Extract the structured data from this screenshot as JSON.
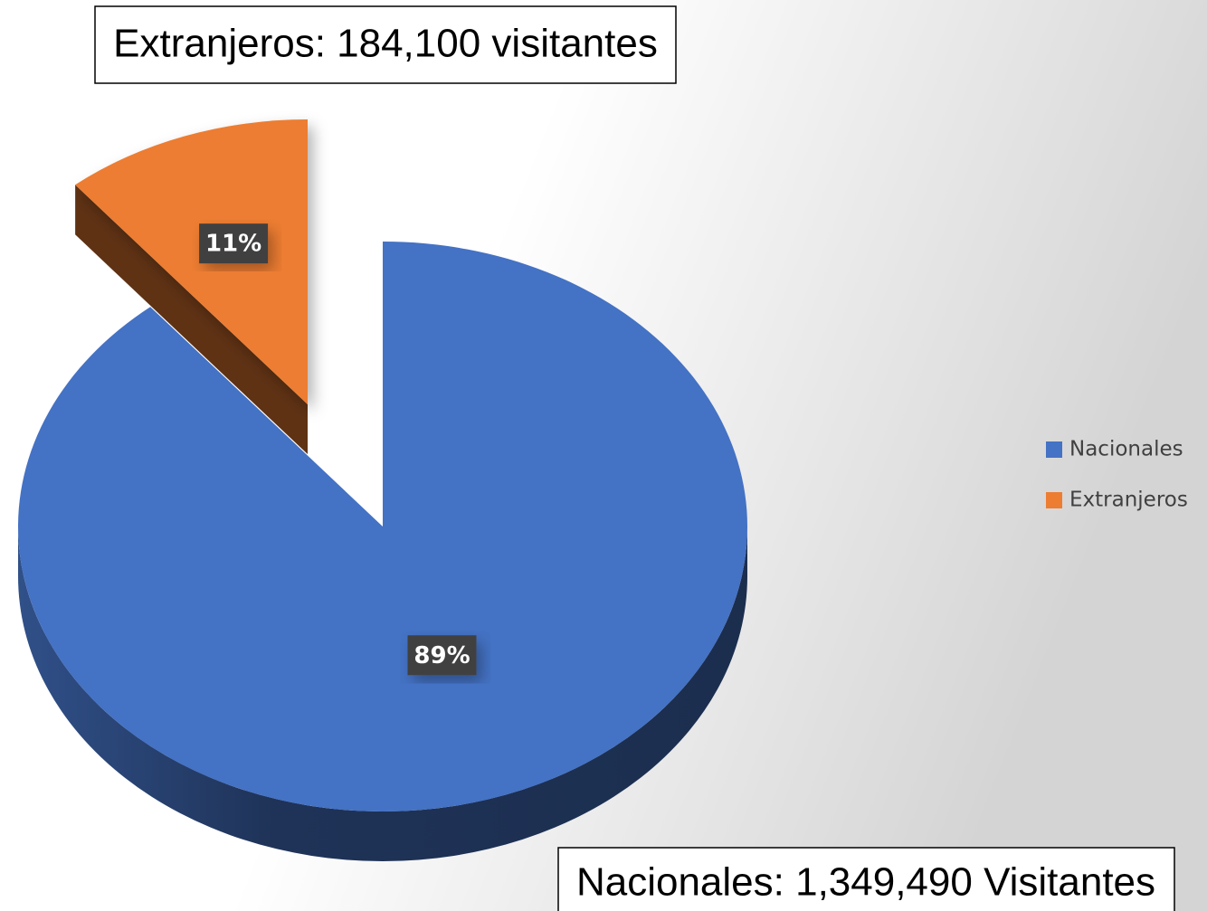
{
  "chart_data": {
    "type": "pie",
    "categories": [
      "Nacionales",
      "Extranjeros"
    ],
    "values": [
      89,
      11
    ],
    "value_labels": [
      "89%",
      "11%"
    ],
    "colors": [
      "#4472c4",
      "#ed7d31"
    ],
    "annotations": [
      "Extranjeros: 184,100 visitantes",
      "Nacionales: 1,349,490 Visitantes"
    ],
    "legend": "right"
  }
}
